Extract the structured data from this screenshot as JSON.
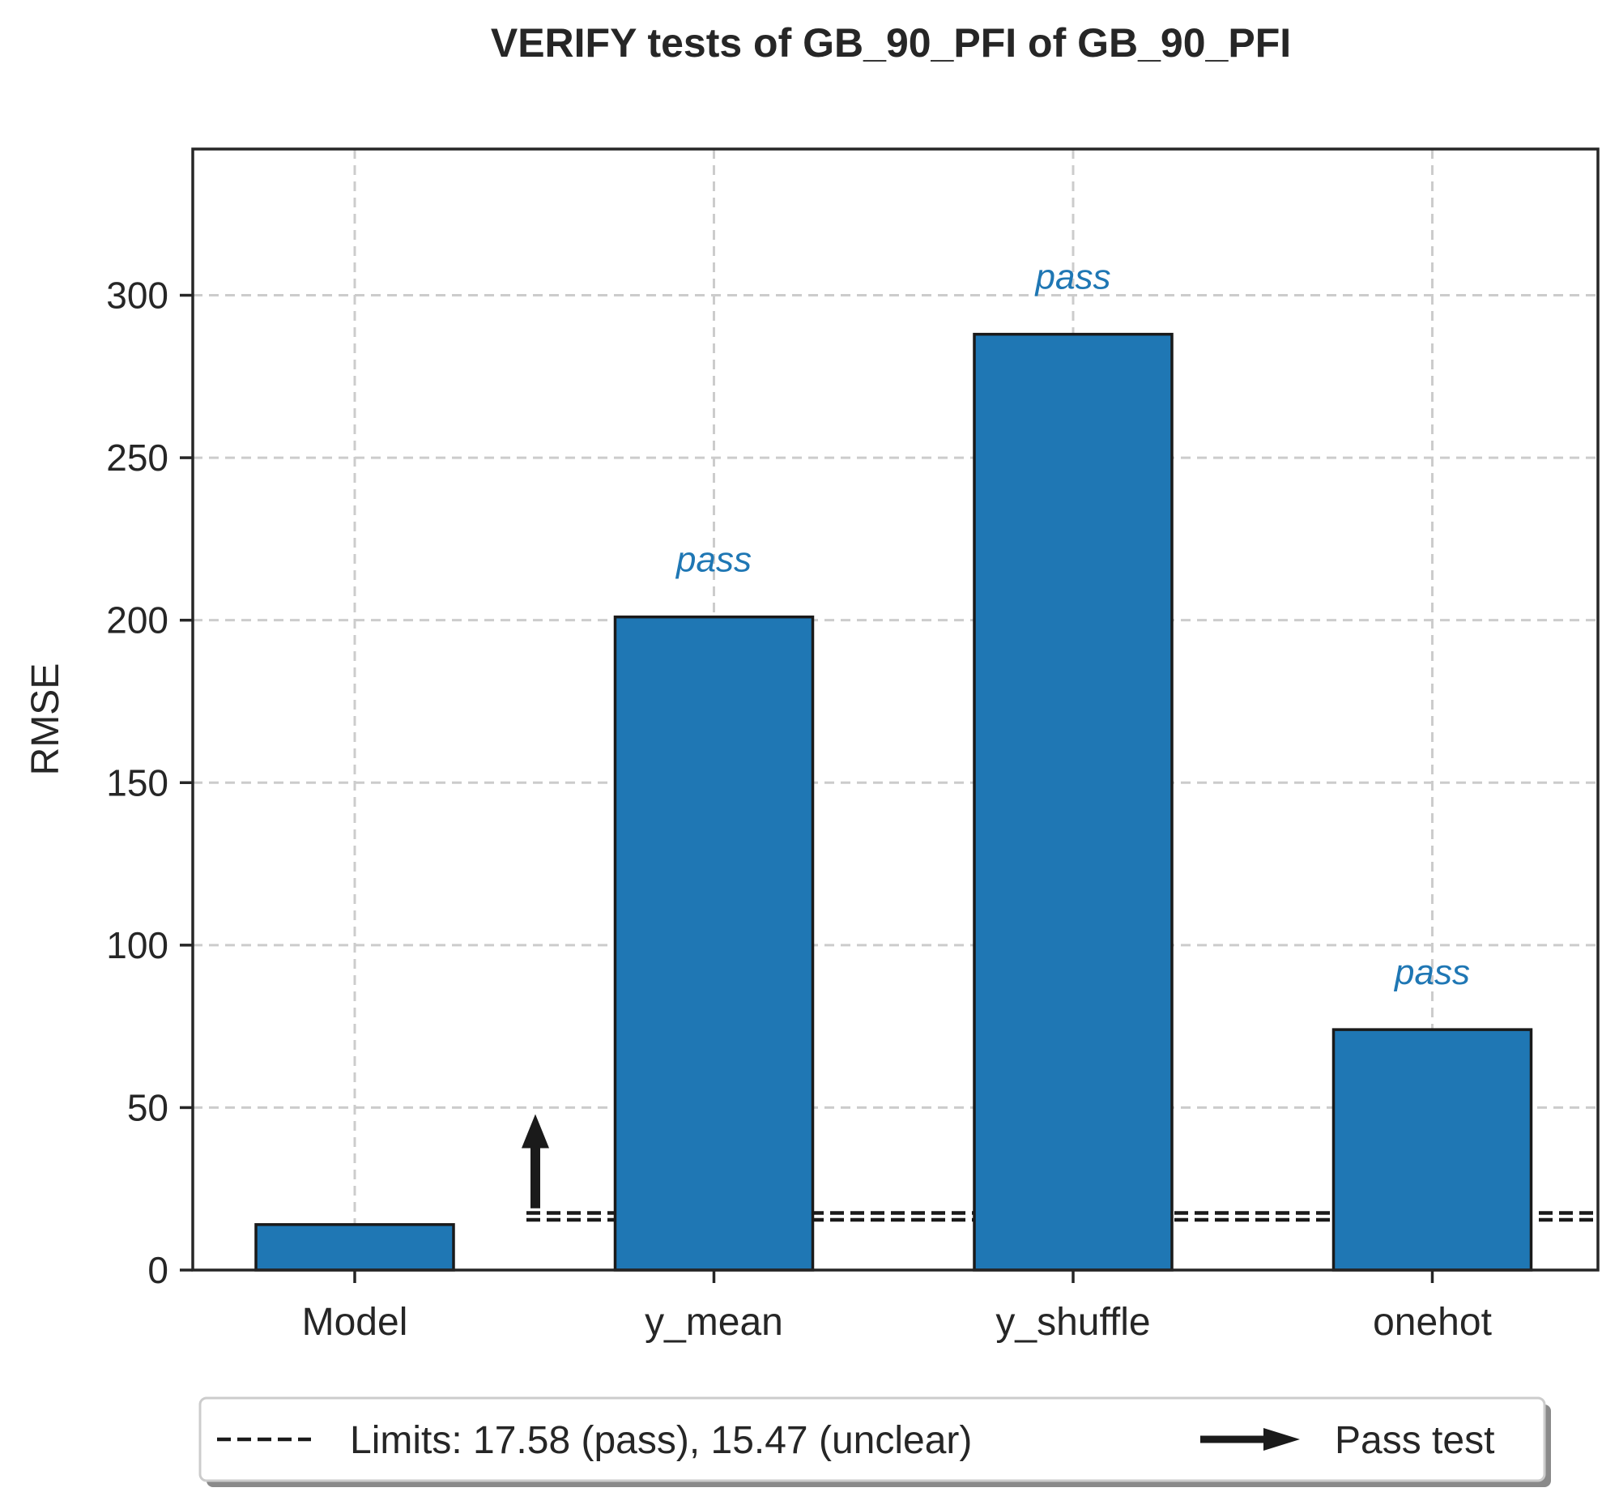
{
  "chart_data": {
    "type": "bar",
    "title": "VERIFY tests of GB_90_PFI of GB_90_PFI",
    "xlabel": "",
    "ylabel": "RMSE",
    "categories": [
      "Model",
      "y_mean",
      "y_shuffle",
      "onehot"
    ],
    "values": [
      14,
      201,
      288,
      74
    ],
    "annotations": [
      "",
      "pass",
      "pass",
      "pass"
    ],
    "ylim": [
      0,
      345
    ],
    "yticks": [
      0,
      50,
      100,
      150,
      200,
      250,
      300
    ],
    "grid": true,
    "limits": {
      "pass": 17.58,
      "unclear": 15.47
    },
    "pass_arrow": {
      "from": 19,
      "to": 48
    },
    "legend": {
      "placement": "bottom",
      "entries": [
        {
          "label": "Limits: 17.58 (pass), 15.47 (unclear)",
          "marker": "dashed-line"
        },
        {
          "label": "Pass test",
          "marker": "arrow"
        }
      ]
    },
    "colors": {
      "bar": "#1f77b4",
      "edge": "#1a1a1a",
      "annotation": "#1f77b4",
      "grid": "#cccccc",
      "text": "#262626"
    }
  }
}
